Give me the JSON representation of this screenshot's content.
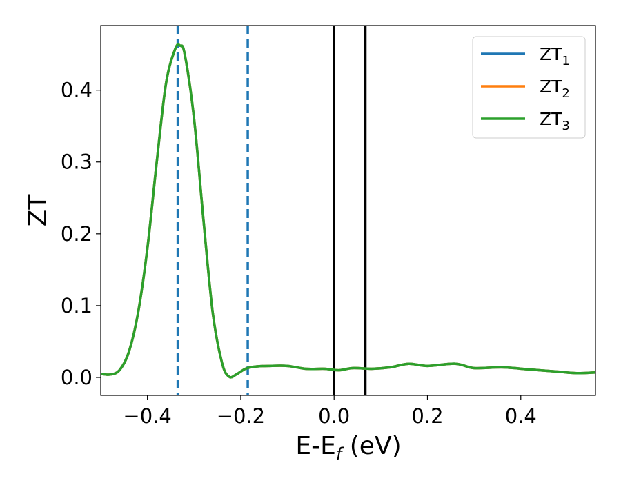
{
  "chart_data": {
    "type": "line",
    "title": "",
    "xlabel": {
      "main": "E-E",
      "subscript": "f",
      "suffix": " (eV)"
    },
    "ylabel": "ZT",
    "xlim": [
      -0.5,
      0.56
    ],
    "ylim": [
      -0.025,
      0.49
    ],
    "xticks": [
      -0.4,
      -0.2,
      0.0,
      0.2,
      0.4
    ],
    "xtick_labels": [
      "−0.4",
      "−0.2",
      "0.0",
      "0.2",
      "0.4"
    ],
    "yticks": [
      0.0,
      0.1,
      0.2,
      0.3,
      0.4
    ],
    "ytick_labels": [
      "0.0",
      "0.1",
      "0.2",
      "0.3",
      "0.4"
    ],
    "grid": false,
    "legend": {
      "placement": "top-right",
      "entries": [
        {
          "base": "ZT",
          "subscript": "1",
          "color": "#1f77b4"
        },
        {
          "base": "ZT",
          "subscript": "2",
          "color": "#ff7f0e"
        },
        {
          "base": "ZT",
          "subscript": "3",
          "color": "#2ca02c"
        }
      ]
    },
    "vertical_lines": [
      {
        "x": -0.335,
        "style": "dashed",
        "color": "#1f77b4"
      },
      {
        "x": -0.185,
        "style": "dashed",
        "color": "#1f77b4"
      },
      {
        "x": 0.0,
        "style": "solid",
        "color": "#000000"
      },
      {
        "x": 0.067,
        "style": "solid",
        "color": "#000000"
      }
    ],
    "x": [
      -0.5,
      -0.48,
      -0.46,
      -0.44,
      -0.42,
      -0.4,
      -0.38,
      -0.36,
      -0.34,
      -0.33,
      -0.32,
      -0.3,
      -0.28,
      -0.26,
      -0.24,
      -0.225,
      -0.21,
      -0.19,
      -0.17,
      -0.14,
      -0.1,
      -0.06,
      -0.02,
      0.01,
      0.04,
      0.08,
      0.12,
      0.16,
      0.2,
      0.26,
      0.3,
      0.36,
      0.42,
      0.48,
      0.52,
      0.56
    ],
    "series": [
      {
        "name": "ZT₁",
        "color": "#1f77b4",
        "values": [
          0.005,
          0.004,
          0.01,
          0.035,
          0.09,
          0.18,
          0.3,
          0.41,
          0.458,
          0.462,
          0.45,
          0.36,
          0.22,
          0.09,
          0.02,
          0.001,
          0.004,
          0.012,
          0.015,
          0.016,
          0.016,
          0.012,
          0.012,
          0.01,
          0.013,
          0.012,
          0.014,
          0.019,
          0.016,
          0.019,
          0.013,
          0.014,
          0.011,
          0.008,
          0.006,
          0.007
        ]
      },
      {
        "name": "ZT₂",
        "color": "#ff7f0e",
        "values": [
          0.005,
          0.004,
          0.01,
          0.035,
          0.09,
          0.18,
          0.3,
          0.41,
          0.458,
          0.462,
          0.45,
          0.36,
          0.22,
          0.09,
          0.02,
          0.001,
          0.004,
          0.012,
          0.015,
          0.016,
          0.016,
          0.012,
          0.012,
          0.01,
          0.013,
          0.012,
          0.014,
          0.019,
          0.016,
          0.019,
          0.013,
          0.014,
          0.011,
          0.008,
          0.006,
          0.007
        ]
      },
      {
        "name": "ZT₃",
        "color": "#2ca02c",
        "values": [
          0.005,
          0.004,
          0.01,
          0.035,
          0.09,
          0.18,
          0.3,
          0.41,
          0.458,
          0.462,
          0.45,
          0.36,
          0.22,
          0.09,
          0.02,
          0.001,
          0.004,
          0.012,
          0.015,
          0.016,
          0.016,
          0.012,
          0.012,
          0.01,
          0.013,
          0.012,
          0.014,
          0.019,
          0.016,
          0.019,
          0.013,
          0.014,
          0.011,
          0.008,
          0.006,
          0.007
        ]
      }
    ]
  }
}
